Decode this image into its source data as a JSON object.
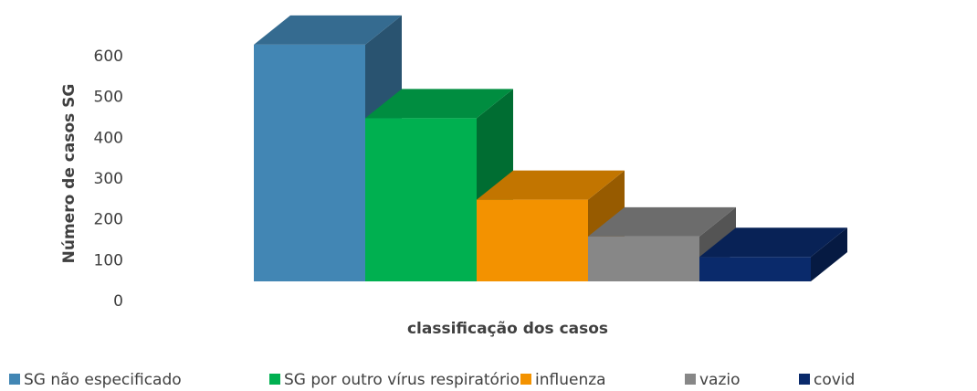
{
  "chart_data": {
    "type": "bar3d",
    "y_label": "Número de casos SG",
    "x_label": "classificação dos casos",
    "categories": [
      "SG não especificado",
      "SG por outro vírus respiratório",
      "influenza",
      "vazio",
      "covid"
    ],
    "values": [
      580,
      400,
      200,
      110,
      60
    ],
    "colors": [
      "#4286b4",
      "#00b050",
      "#f39200",
      "#878787",
      "#0a2a6b"
    ],
    "ylim": [
      0,
      600
    ],
    "yticks": [
      0,
      100,
      200,
      300,
      400,
      500,
      600
    ]
  }
}
